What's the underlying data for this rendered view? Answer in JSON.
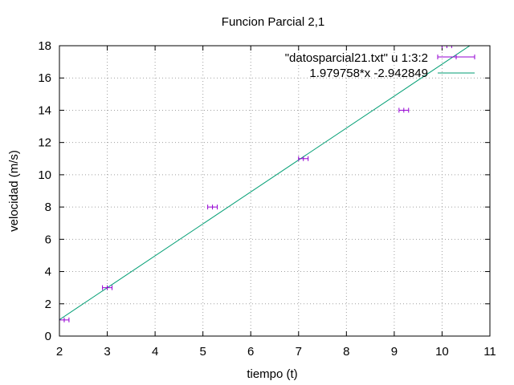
{
  "chart_data": {
    "type": "scatter",
    "title": "Funcion Parcial 2,1",
    "xlabel": "tiempo (t)",
    "ylabel": "velocidad (m/s)",
    "xlim": [
      2,
      11
    ],
    "ylim": [
      0,
      18
    ],
    "xticks": [
      2,
      3,
      4,
      5,
      6,
      7,
      8,
      9,
      10,
      11
    ],
    "yticks": [
      0,
      2,
      4,
      6,
      8,
      10,
      12,
      14,
      16,
      18
    ],
    "grid": true,
    "legend_position": "top-right",
    "series": [
      {
        "name": "\"datosparcial21.txt\" u 1:3:2",
        "kind": "xerrorbars",
        "color": "#9400d3",
        "points": [
          {
            "x": 2.1,
            "y": 1,
            "xerr": 0.1
          },
          {
            "x": 3.0,
            "y": 3,
            "xerr": 0.1
          },
          {
            "x": 5.2,
            "y": 8,
            "xerr": 0.1
          },
          {
            "x": 7.1,
            "y": 11,
            "xerr": 0.1
          },
          {
            "x": 9.2,
            "y": 14,
            "xerr": 0.1
          },
          {
            "x": 10.1,
            "y": 18,
            "xerr": 0.1
          }
        ]
      },
      {
        "name": "1.979758*x -2.942849",
        "kind": "function",
        "color": "#009e73",
        "slope": 1.979758,
        "intercept": -2.942849
      }
    ]
  }
}
